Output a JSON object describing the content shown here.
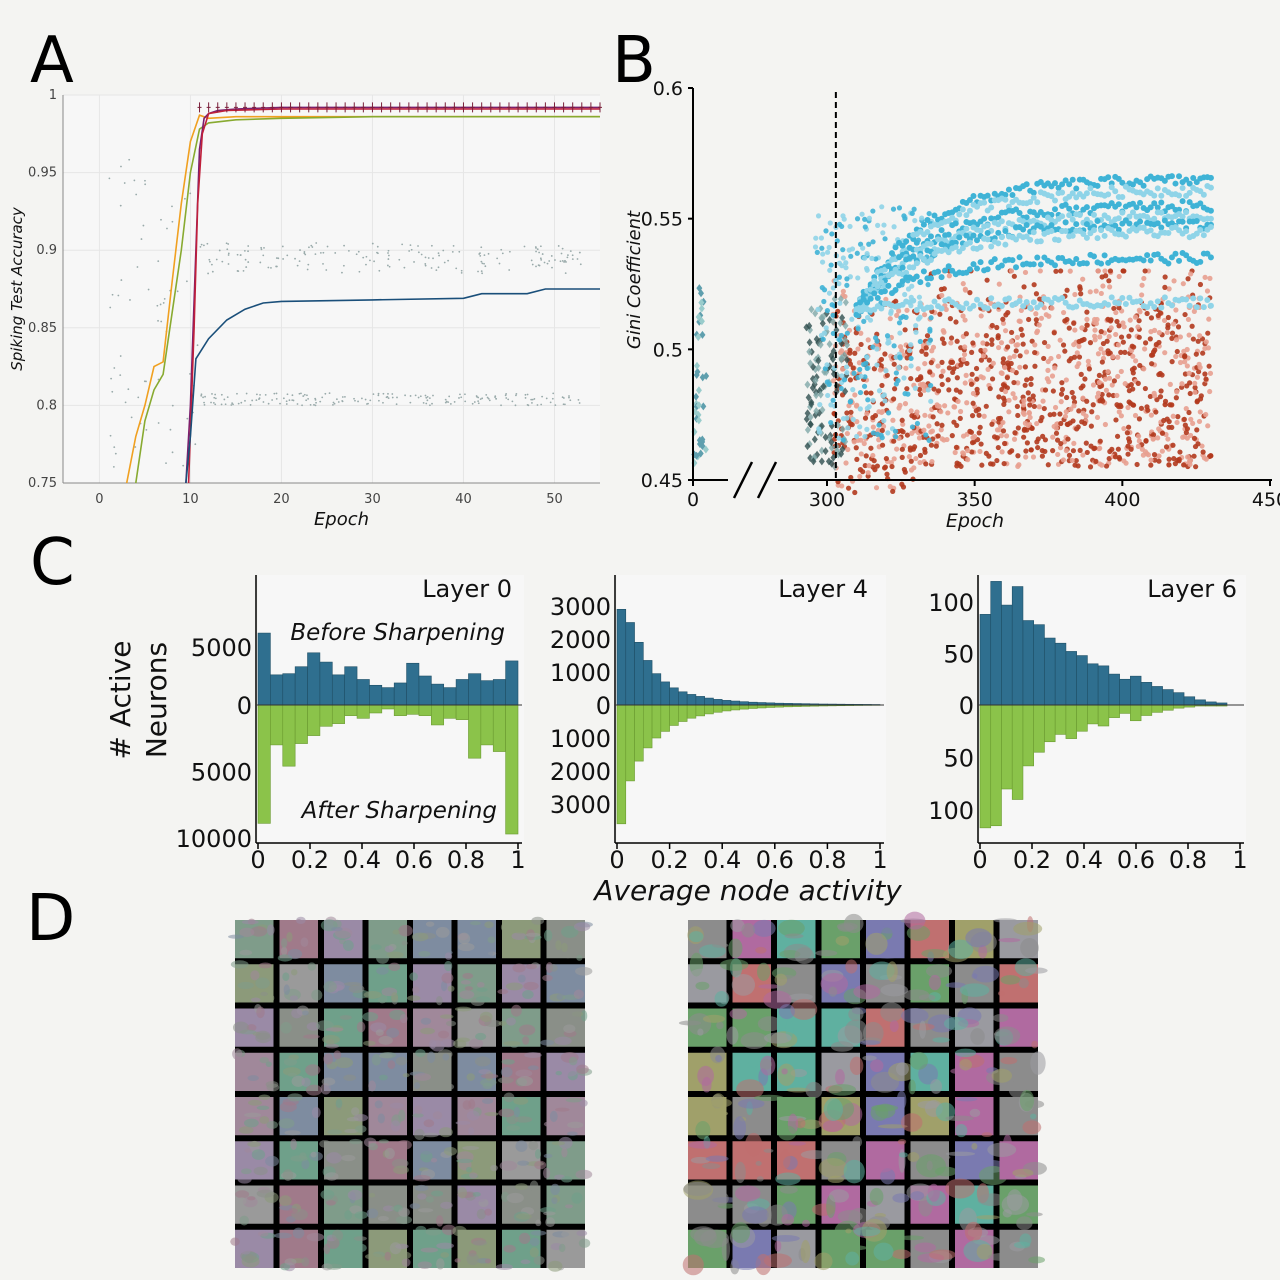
{
  "panels": {
    "a": "A",
    "b": "B",
    "c": "C",
    "d": "D"
  },
  "chart_data": [
    {
      "id": "A",
      "type": "line",
      "xlabel": "Epoch",
      "ylabel": "Spiking Test Accuracy",
      "xlim": [
        -4,
        55
      ],
      "ylim": [
        0.75,
        1.0
      ],
      "xticks": [
        0,
        10,
        20,
        30,
        40,
        50
      ],
      "yticks": [
        0.75,
        0.8,
        0.85,
        0.9,
        0.95,
        1
      ],
      "ytick_labels": [
        "0.75",
        "0.8",
        "0.85",
        "0.9",
        "0.95",
        "1"
      ],
      "grid": true,
      "series": [
        {
          "color": "#f0a020",
          "points": [
            [
              3,
              0.75
            ],
            [
              4,
              0.78
            ],
            [
              5,
              0.8
            ],
            [
              6,
              0.825
            ],
            [
              7,
              0.828
            ],
            [
              8,
              0.88
            ],
            [
              9,
              0.93
            ],
            [
              10,
              0.97
            ],
            [
              11,
              0.987
            ],
            [
              12,
              0.985
            ],
            [
              15,
              0.986
            ],
            [
              20,
              0.986
            ],
            [
              30,
              0.986
            ],
            [
              40,
              0.986
            ],
            [
              55,
              0.986
            ]
          ]
        },
        {
          "color": "#88aa30",
          "points": [
            [
              4,
              0.75
            ],
            [
              5,
              0.79
            ],
            [
              6,
              0.81
            ],
            [
              7,
              0.82
            ],
            [
              8,
              0.86
            ],
            [
              9,
              0.9
            ],
            [
              10,
              0.95
            ],
            [
              11,
              0.978
            ],
            [
              12,
              0.982
            ],
            [
              15,
              0.984
            ],
            [
              20,
              0.985
            ],
            [
              30,
              0.986
            ],
            [
              55,
              0.986
            ]
          ]
        },
        {
          "color": "#7a1f6e",
          "points": [
            [
              9.5,
              0.75
            ],
            [
              10,
              0.8
            ],
            [
              10.6,
              0.9
            ],
            [
              11,
              0.965
            ],
            [
              11.5,
              0.985
            ],
            [
              12,
              0.988
            ],
            [
              13,
              0.99
            ],
            [
              15,
              0.991
            ],
            [
              20,
              0.992
            ],
            [
              30,
              0.992
            ],
            [
              55,
              0.992
            ]
          ]
        },
        {
          "color": "#c01f3a",
          "points": [
            [
              9.8,
              0.75
            ],
            [
              10.4,
              0.85
            ],
            [
              10.8,
              0.93
            ],
            [
              11.3,
              0.975
            ],
            [
              12,
              0.988
            ],
            [
              14,
              0.99
            ],
            [
              20,
              0.991
            ],
            [
              55,
              0.991
            ]
          ]
        },
        {
          "color": "#1a4f7a",
          "points": [
            [
              9.5,
              0.75
            ],
            [
              10,
              0.78
            ],
            [
              10.6,
              0.83
            ],
            [
              12,
              0.843
            ],
            [
              14,
              0.855
            ],
            [
              16,
              0.862
            ],
            [
              18,
              0.866
            ],
            [
              20,
              0.867
            ],
            [
              30,
              0.868
            ],
            [
              40,
              0.869
            ],
            [
              42,
              0.872
            ],
            [
              47,
              0.872
            ],
            [
              49,
              0.875
            ],
            [
              55,
              0.875
            ]
          ]
        }
      ]
    },
    {
      "id": "B",
      "type": "scatter",
      "xlabel": "Epoch",
      "ylabel": "Gini Coefficient",
      "ylim": [
        0.45,
        0.6
      ],
      "yticks": [
        0.45,
        0.5,
        0.55,
        0.6
      ],
      "ytick_labels": [
        "0.45",
        "0.5",
        "0.55",
        "0.6"
      ],
      "xticks": [
        0,
        300,
        350,
        400,
        450
      ],
      "x_axis_break": "between 0 and 300",
      "dashed_line_x": 303,
      "blue_plateaus": [
        0.565,
        0.561,
        0.555,
        0.551,
        0.548,
        0.545,
        0.535,
        0.518
      ],
      "colors": {
        "blue": "#3fb3d6",
        "light_blue": "#8fd4e8",
        "red": "#b23a1e",
        "pink": "#e8a090",
        "dark": "#2f4f4f"
      }
    },
    {
      "id": "C-layer0",
      "type": "bar",
      "title": "Layer 0",
      "xlim": [
        0,
        1
      ],
      "xticks": [
        "0",
        "0.2",
        "0.4",
        "0.6",
        "0.8",
        "1"
      ],
      "yticks_top": [
        "5000",
        "0"
      ],
      "yticks_bottom": [
        "5000",
        "10000"
      ],
      "legend_top": "Before Sharpening",
      "legend_bottom": "After Sharpening",
      "before": [
        6200,
        2600,
        2700,
        3300,
        4500,
        3700,
        2600,
        3300,
        2200,
        1700,
        1500,
        1900,
        3600,
        2500,
        1800,
        1500,
        2200,
        2700,
        2100,
        2200,
        3800
      ],
      "after": [
        8900,
        3000,
        4600,
        2900,
        2300,
        1600,
        1400,
        800,
        1000,
        600,
        300,
        800,
        700,
        800,
        1500,
        1000,
        1100,
        4000,
        3000,
        3500,
        9700
      ]
    },
    {
      "id": "C-layer4",
      "type": "bar",
      "title": "Layer 4",
      "xlim": [
        0,
        1
      ],
      "xticks": [
        "0",
        "0.2",
        "0.4",
        "0.6",
        "0.8",
        "1"
      ],
      "yticks_top": [
        "3000",
        "2000",
        "1000",
        "0"
      ],
      "yticks_bottom": [
        "1000",
        "2000",
        "3000"
      ],
      "before": [
        2900,
        2500,
        1900,
        1350,
        950,
        700,
        520,
        400,
        320,
        260,
        210,
        170,
        140,
        120,
        100,
        85,
        75,
        65,
        55,
        50,
        45,
        40,
        35,
        30,
        28,
        25,
        22,
        20,
        18,
        15
      ],
      "after": [
        3600,
        2300,
        1700,
        1300,
        1000,
        800,
        620,
        500,
        400,
        330,
        270,
        220,
        180,
        150,
        125,
        105,
        90,
        75,
        65,
        55,
        48,
        42,
        36,
        30,
        26,
        22,
        18,
        15,
        12,
        10
      ]
    },
    {
      "id": "C-layer6",
      "type": "bar",
      "title": "Layer 6",
      "xlim": [
        0,
        1
      ],
      "xticks": [
        "0",
        "0.2",
        "0.4",
        "0.6",
        "0.8",
        "1"
      ],
      "yticks_top": [
        "100",
        "50",
        "0"
      ],
      "yticks_bottom": [
        "50",
        "100"
      ],
      "before": [
        88,
        120,
        97,
        115,
        82,
        78,
        65,
        60,
        52,
        48,
        40,
        38,
        30,
        25,
        28,
        22,
        18,
        15,
        12,
        8,
        5,
        3,
        2
      ],
      "after": [
        117,
        115,
        80,
        90,
        58,
        45,
        35,
        28,
        32,
        25,
        18,
        20,
        12,
        8,
        15,
        10,
        7,
        5,
        3,
        2,
        1,
        1,
        1
      ]
    }
  ],
  "axis_label_c": {
    "ylabel_line1": "# Active",
    "ylabel_line2": "Neurons",
    "xlabel": "Average node activity"
  },
  "colors": {
    "before": "#2f6f8f",
    "after": "#8bc34a",
    "before_text": "#2f6f8f",
    "after_text": "#6aa036"
  }
}
